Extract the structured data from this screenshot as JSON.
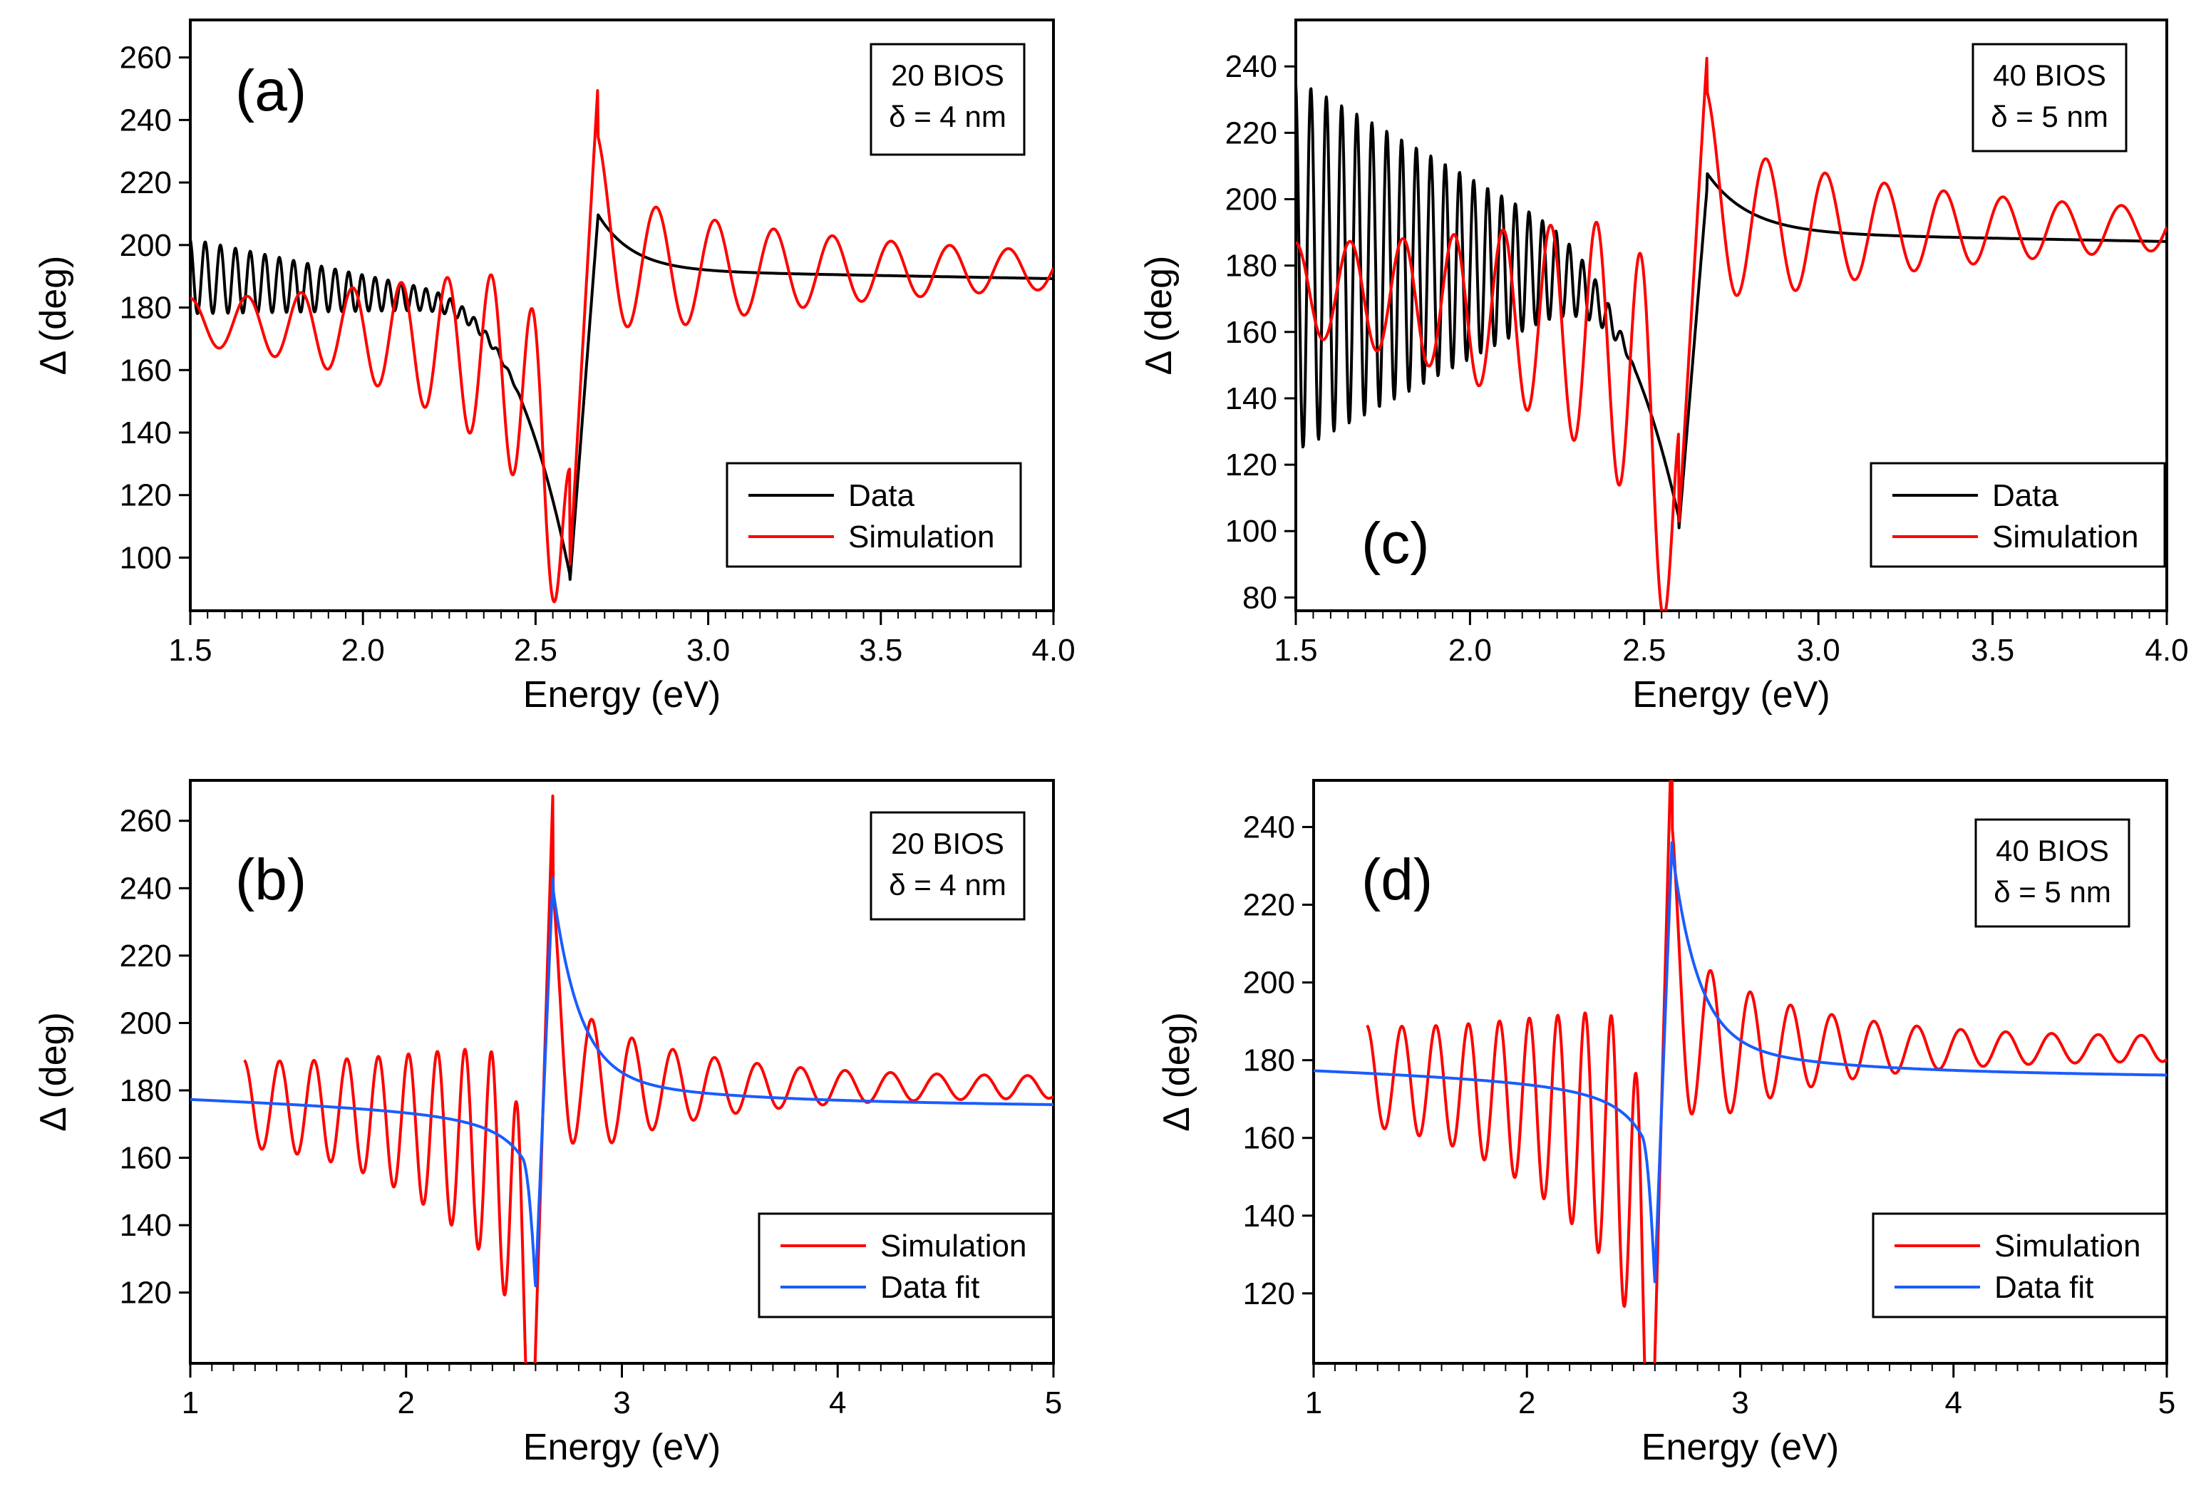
{
  "chart_data": [
    {
      "panel": "(a)",
      "type": "line",
      "xlabel": "Energy (eV)",
      "ylabel": "Δ (deg)",
      "xlim": [
        1.5,
        4.0
      ],
      "ylim": [
        83,
        272
      ],
      "xticks": [
        1.5,
        2.0,
        2.5,
        3.0,
        3.5,
        4.0
      ],
      "xtick_labels": [
        "1.5",
        "2.0",
        "2.5",
        "3.0",
        "3.5",
        "4.0"
      ],
      "minor_step": 0.05,
      "yticks": [
        100,
        120,
        140,
        160,
        180,
        200,
        220,
        240,
        260
      ],
      "ytick_labels": [
        "100",
        "120",
        "140",
        "160",
        "180",
        "200",
        "220",
        "240",
        "260"
      ],
      "info": [
        "20 BIOS",
        "δ = 4 nm"
      ],
      "legend": [
        "Data",
        "Simulation"
      ],
      "series": [
        {
          "name": "Data",
          "color": "#000000",
          "model": {
            "kind": "data",
            "x0": 1.5,
            "x1": 4.0,
            "E0": 2.62,
            "w": 0.05,
            "base": 178,
            "d": 0.8,
            "amp": 12,
            "trend": [
              190,
              178
            ],
            "period": [
              0.045,
              0.03
            ],
            "dip_depth": 95,
            "peak_rise": 30,
            "tail_base": 192,
            "tail_amp": 18,
            "tail_decay": 0.1
          }
        },
        {
          "name": "Simulation",
          "color": "#ff0000",
          "model": {
            "kind": "sim",
            "x0": 1.5,
            "x1": 4.0,
            "E0": 2.62,
            "w": 0.05,
            "base": 180,
            "d": 0.8,
            "trend_lo": [
              175,
              163
            ],
            "trend_hi": [
              176,
              178
            ],
            "amp0": 7,
            "amp_grow": 0.0,
            "period": [
              0.17,
              0.11
            ],
            "dip_depth": 80,
            "peak_rise": 70,
            "tail_base": 192,
            "tail_amp": 42,
            "tail_decay": 0.7,
            "tail_period": [
              0.17,
              0.17
            ]
          }
        }
      ]
    },
    {
      "panel": "(b)",
      "type": "line",
      "xlabel": "Energy (eV)",
      "ylabel": "Δ (deg)",
      "xlim": [
        1.0,
        5.0
      ],
      "ylim": [
        99,
        272
      ],
      "xticks": [
        1,
        2,
        3,
        4,
        5
      ],
      "xtick_labels": [
        "1",
        "2",
        "3",
        "4",
        "5"
      ],
      "minor_step": 0.1,
      "yticks": [
        120,
        140,
        160,
        180,
        200,
        220,
        240,
        260
      ],
      "ytick_labels": [
        "120",
        "140",
        "160",
        "180",
        "200",
        "220",
        "240",
        "260"
      ],
      "info": [
        "20 BIOS",
        "δ = 4 nm"
      ],
      "legend": [
        "Simulation",
        "Data fit"
      ],
      "series": [
        {
          "name": "Simulation",
          "color": "#ff0000",
          "model": {
            "kind": "sim",
            "x0": 1.25,
            "x1": 5.0,
            "E0": 2.62,
            "w": 0.05,
            "base": 178,
            "d": 0.8,
            "trend_lo": [
              170,
              163
            ],
            "trend_hi": [
              182,
              178
            ],
            "amp0": 7,
            "amp_grow": 0.0,
            "period": [
              0.17,
              0.11
            ],
            "dip_depth": 72,
            "peak_rise": 90,
            "tail_base": 181,
            "tail_amp": 45,
            "tail_decay": 0.55,
            "tail_period": [
              0.18,
              0.2
            ]
          }
        },
        {
          "name": "Data fit",
          "color": "#1a5cff",
          "model": {
            "kind": "fit",
            "x0": 1.0,
            "x1": 5.0,
            "E0": 2.62,
            "w": 0.05,
            "base": 178,
            "d": 0.8,
            "slope": -1.2,
            "dip_depth": 56,
            "peak_rise": 65
          }
        }
      ]
    },
    {
      "panel": "(c)",
      "type": "line",
      "xlabel": "Energy (eV)",
      "ylabel": "Δ (deg)",
      "xlim": [
        1.5,
        4.0
      ],
      "ylim": [
        76,
        254
      ],
      "xticks": [
        1.5,
        2.0,
        2.5,
        3.0,
        3.5,
        4.0
      ],
      "xtick_labels": [
        "1.5",
        "2.0",
        "2.5",
        "3.0",
        "3.5",
        "4.0"
      ],
      "minor_step": 0.05,
      "yticks": [
        80,
        100,
        120,
        140,
        160,
        180,
        200,
        220,
        240
      ],
      "ytick_labels": [
        "80",
        "100",
        "120",
        "140",
        "160",
        "180",
        "200",
        "220",
        "240"
      ],
      "info": [
        "40 BIOS",
        "δ = 5 nm"
      ],
      "legend": [
        "Data",
        "Simulation"
      ],
      "series": [
        {
          "name": "Data",
          "color": "#000000",
          "model": {
            "kind": "data",
            "x0": 1.5,
            "x1": 4.0,
            "E0": 2.62,
            "w": 0.05,
            "base": 175,
            "d": 0.75,
            "amp": 56,
            "trend": [
              180,
              178
            ],
            "period": [
              0.045,
              0.035
            ],
            "dip_depth": 84,
            "peak_rise": 28,
            "tail_base": 190,
            "tail_amp": 18,
            "tail_decay": 0.12
          }
        },
        {
          "name": "Simulation",
          "color": "#ff0000",
          "model": {
            "kind": "sim",
            "x0": 1.5,
            "x1": 4.0,
            "E0": 2.62,
            "w": 0.05,
            "base": 175,
            "d": 0.75,
            "trend_lo": [
              168,
              150
            ],
            "trend_hi": [
              178,
              178
            ],
            "amp0": 9,
            "amp_grow": 0.0,
            "period": [
              0.16,
              0.12
            ],
            "dip_depth": 70,
            "peak_rise": 68,
            "tail_base": 191,
            "tail_amp": 45,
            "tail_decay": 0.7,
            "tail_period": [
              0.17,
              0.17
            ]
          }
        }
      ]
    },
    {
      "panel": "(d)",
      "type": "line",
      "xlabel": "Energy (eV)",
      "ylabel": "Δ (deg)",
      "xlim": [
        1.0,
        5.0
      ],
      "ylim": [
        102,
        252
      ],
      "xticks": [
        1,
        2,
        3,
        4,
        5
      ],
      "xtick_labels": [
        "1",
        "2",
        "3",
        "4",
        "5"
      ],
      "minor_step": 0.1,
      "yticks": [
        120,
        140,
        160,
        180,
        200,
        220,
        240
      ],
      "ytick_labels": [
        "120",
        "140",
        "160",
        "180",
        "200",
        "220",
        "240"
      ],
      "info": [
        "40 BIOS",
        "δ = 5 nm"
      ],
      "legend": [
        "Simulation",
        "Data fit"
      ],
      "series": [
        {
          "name": "Simulation",
          "color": "#ff0000",
          "model": {
            "kind": "sim",
            "x0": 1.25,
            "x1": 5.0,
            "E0": 2.62,
            "w": 0.05,
            "base": 178,
            "d": 0.8,
            "trend_lo": [
              170,
              160
            ],
            "trend_hi": [
              182,
              178
            ],
            "amp0": 7,
            "amp_grow": 0.0,
            "period": [
              0.17,
              0.11
            ],
            "dip_depth": 72,
            "peak_rise": 90,
            "tail_base": 183,
            "tail_amp": 45,
            "tail_decay": 0.55,
            "tail_period": [
              0.18,
              0.2
            ]
          }
        },
        {
          "name": "Data fit",
          "color": "#1a5cff",
          "model": {
            "kind": "fit",
            "x0": 1.0,
            "x1": 5.0,
            "E0": 2.62,
            "w": 0.05,
            "base": 178,
            "d": 0.8,
            "slope": -1.0,
            "dip_depth": 55,
            "peak_rise": 58
          }
        }
      ]
    }
  ]
}
